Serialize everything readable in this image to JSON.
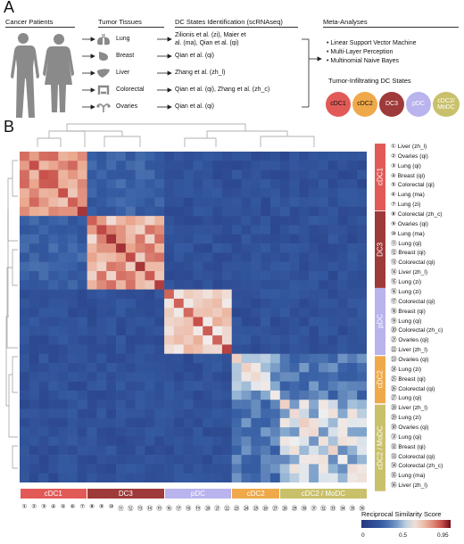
{
  "panel_a": {
    "letter": "A",
    "headers": {
      "patients": "Cancer Patients",
      "tissues": "Tumor Tissues",
      "dc_states": "DC States Identification (scRNAseq)",
      "meta": "Meta-Analyses"
    },
    "tissues": [
      {
        "name": "Lung",
        "icon": "lung-icon",
        "studies": [
          "Zilionis et al. (zi), Maier et",
          "al. (ma), Qian et al. (qi)"
        ]
      },
      {
        "name": "Breast",
        "icon": "breast-icon",
        "studies": [
          "Qian et al. (qi)"
        ]
      },
      {
        "name": "Liver",
        "icon": "liver-icon",
        "studies": [
          "Zhang et al. (zh_l)"
        ]
      },
      {
        "name": "Colorectal",
        "icon": "colon-icon",
        "studies": [
          "Qian et al. (qi), Zhang et al. (zh_c)"
        ]
      },
      {
        "name": "Ovaries",
        "icon": "ovaries-icon",
        "studies": [
          "Qian et al. (qi)"
        ]
      }
    ],
    "methods": [
      "Linear Support Vector Machine",
      "Multi-Layer Perception",
      "Multinomial Naive Bayes"
    ],
    "tidc_title": "Tumor-Infiltrating DC States",
    "states": [
      {
        "label": "cDC1",
        "color": "#e25a57"
      },
      {
        "label": "cDC2",
        "color": "#efa94a"
      },
      {
        "label": "DC3",
        "color": "#9f3a3a"
      },
      {
        "label": "pDC",
        "color": "#b9b3ee"
      },
      {
        "label": "cDC2/ MoDC",
        "color": "#c9c06a"
      }
    ]
  },
  "panel_b": {
    "letter": "B",
    "groups": [
      {
        "label": "cDC1",
        "start": 1,
        "end": 7,
        "color": "#e25a57"
      },
      {
        "label": "DC3",
        "start": 8,
        "end": 15,
        "color": "#9f3a3a"
      },
      {
        "label": "pDC",
        "start": 16,
        "end": 22,
        "color": "#b9b3ee"
      },
      {
        "label": "cDC2",
        "start": 23,
        "end": 27,
        "color": "#efa94a"
      },
      {
        "label": "cDC2 / MoDC",
        "start": 28,
        "end": 36,
        "color": "#c9c06a"
      }
    ],
    "rows": [
      "① Liver (zh_l)",
      "② Ovaries (qi)",
      "③ Lung (qi)",
      "④ Breast (qi)",
      "⑤ Colorectal (qi)",
      "⑥ Lung (ma)",
      "⑦ Lung (zi)",
      "⑧ Colorectal (zh_c)",
      "⑨ Ovaries (qi)",
      "⑩ Lung (ma)",
      "⑪ Lung (qi)",
      "⑫ Breast (qi)",
      "⑬ Colorectal (qi)",
      "⑭ Liver (zh_l)",
      "⑮ Lung (zi)",
      "⑯ Lung (zi)",
      "⑰ Colorectal (qi)",
      "⑱ Breast (qi)",
      "⑲ Lung (qi)",
      "⑳ Colorectal (zh_c)",
      "㉑ Ovaries (qi)",
      "㉒ Liver (zh_l)",
      "㉓ Ovaries (qi)",
      "㉔ Lung (zi)",
      "㉕ Breast (qi)",
      "㉖ Colorectal (qi)",
      "㉗ Lung (qi)",
      "㉘ Liver (zh_l)",
      "㉙ Lung (zi)",
      "㉚ Ovaries (qi)",
      "㉛ Lung (qi)",
      "㉜ Breast (qi)",
      "㉝ Colorectal (qi)",
      "㉞ Colorectal (zh_c)",
      "㉟ Lung (ma)",
      "㊱ Liver (zh_l)"
    ],
    "columns": [
      "①",
      "②",
      "③",
      "④",
      "⑤",
      "⑥",
      "⑦",
      "⑧",
      "⑨",
      "⑩",
      "⑪",
      "⑫",
      "⑬",
      "⑭",
      "⑮",
      "⑯",
      "⑰",
      "⑱",
      "⑲",
      "⑳",
      "㉑",
      "㉒",
      "㉓",
      "㉔",
      "㉕",
      "㉖",
      "㉗",
      "㉘",
      "㉙",
      "㉚",
      "㉛",
      "㉜",
      "㉝",
      "㉞",
      "㉟",
      "㊱"
    ],
    "legend": {
      "title": "Reciprocal Similarity Score",
      "ticks": [
        "0",
        "0.5",
        "0.95"
      ],
      "min": 0,
      "max": 0.95
    }
  }
}
